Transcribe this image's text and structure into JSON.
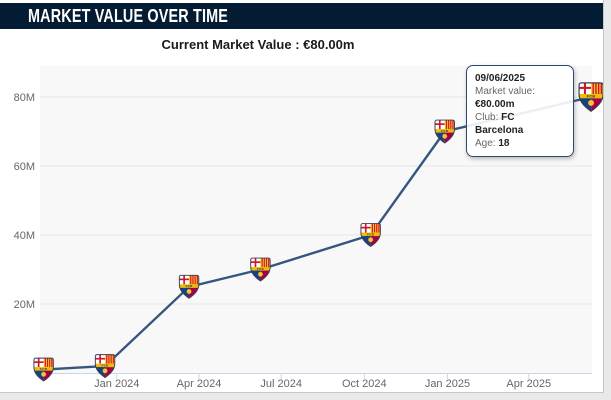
{
  "header": {
    "title": "MARKET VALUE OVER TIME"
  },
  "tooltip": {
    "date": "09/06/2025",
    "rows": [
      {
        "label": "Market value: ",
        "value": "€80.00m"
      },
      {
        "label": "Club: ",
        "value": "FC Barcelona"
      },
      {
        "label": "Age: ",
        "value": "18"
      }
    ]
  },
  "colors": {
    "header_bg": "#041c33",
    "line": "#35567e",
    "plot_bg": "#f8f8f8",
    "grid": "#e6e6e6",
    "axis": "#ccd6eb",
    "axis_label": "#666666",
    "tooltip_border": "#2c4a6e"
  },
  "chart_data": {
    "type": "line",
    "title": "Current Market Value : €80.00m",
    "xlabel": "",
    "ylabel": "",
    "grid": true,
    "legend_position": "none",
    "marker": "fc-barcelona-crest",
    "xlim": [
      "2023-10-08",
      "2025-06-10"
    ],
    "ylim": [
      0,
      89
    ],
    "x_ticks": [
      {
        "date": "2024-01-01",
        "label": "Jan 2024"
      },
      {
        "date": "2024-04-01",
        "label": "Apr 2024"
      },
      {
        "date": "2024-07-01",
        "label": "Jul 2024"
      },
      {
        "date": "2024-10-01",
        "label": "Oct 2024"
      },
      {
        "date": "2025-01-01",
        "label": "Jan 2025"
      },
      {
        "date": "2025-04-01",
        "label": "Apr 2025"
      }
    ],
    "y_ticks": [
      {
        "value": 20,
        "label": "20M"
      },
      {
        "value": 40,
        "label": "40M"
      },
      {
        "value": 60,
        "label": "60M"
      },
      {
        "value": 80,
        "label": "80M"
      }
    ],
    "series": [
      {
        "name": "Market value",
        "points": [
          {
            "date": "2023-10-12",
            "value": 1
          },
          {
            "date": "2023-12-19",
            "value": 2
          },
          {
            "date": "2024-03-21",
            "value": 25
          },
          {
            "date": "2024-06-08",
            "value": 30
          },
          {
            "date": "2024-10-08",
            "value": 40
          },
          {
            "date": "2024-12-29",
            "value": 70
          },
          {
            "date": "2025-06-09",
            "value": 80,
            "current": true
          }
        ]
      }
    ]
  }
}
